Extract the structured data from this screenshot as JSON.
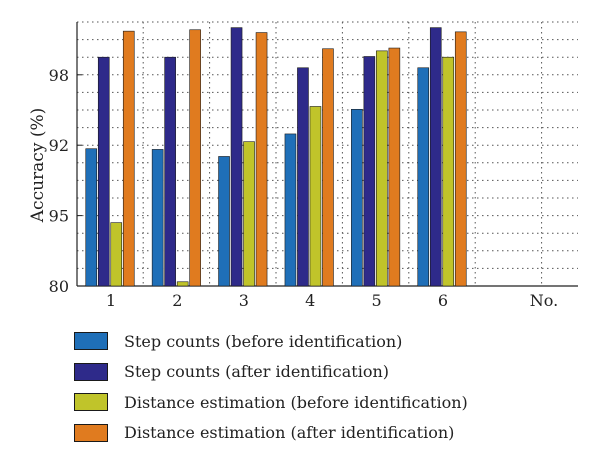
{
  "chart_data": {
    "type": "bar",
    "ylabel": "Accuracy (%)",
    "categories": [
      "1",
      "2",
      "3",
      "4",
      "5",
      "6"
    ],
    "extra_x_label": "No.",
    "y_tick_labels": [
      "80",
      "95",
      "92",
      "98"
    ],
    "y_tick_positions": [
      0,
      1,
      2,
      3
    ],
    "grid": true,
    "legend_position": "bottom",
    "series": [
      {
        "name": "Step counts (before identification)",
        "color": "#1f6fb8",
        "values": [
          1.95,
          1.94,
          1.84,
          2.16,
          2.51,
          3.1
        ]
      },
      {
        "name": "Step counts (after identification)",
        "color": "#2e2a8a",
        "values": [
          3.25,
          3.25,
          3.67,
          3.1,
          3.26,
          3.67
        ]
      },
      {
        "name": "Distance estimation (before identification)",
        "color": "#c0c42a",
        "values": [
          0.9,
          0.06,
          2.05,
          2.55,
          3.34,
          3.25
        ]
      },
      {
        "name": "Distance estimation (after identification)",
        "color": "#e07b1f",
        "values": [
          3.62,
          3.64,
          3.6,
          3.37,
          3.38,
          3.61
        ]
      }
    ]
  }
}
